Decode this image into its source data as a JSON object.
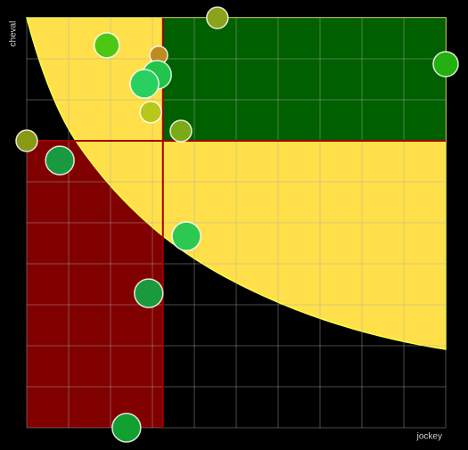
{
  "chart_data": {
    "type": "scatter",
    "x_label": "jockey",
    "y_label": "cheval",
    "xlim": [
      0,
      10
    ],
    "ylim": [
      0,
      10
    ],
    "xticks": [
      0,
      1,
      2,
      3,
      4,
      5,
      6,
      7,
      8,
      9,
      10
    ],
    "yticks": [
      0,
      1,
      2,
      3,
      4,
      5,
      6,
      7,
      8,
      9,
      10
    ],
    "grid": true,
    "reference_lines": {
      "x": 3.25,
      "y": 7
    },
    "x": [
      4.55,
      1.91,
      3.15,
      3.11,
      2.81,
      2.96,
      3.68,
      10,
      0,
      0.79,
      3.81,
      2.91,
      2.38
    ],
    "values": [
      10,
      9.33,
      9.09,
      8.61,
      8.39,
      7.7,
      7.24,
      8.87,
      7,
      6.52,
      4.67,
      3.28,
      0
    ],
    "sizes": [
      12,
      14,
      10,
      16,
      16,
      12,
      12,
      14,
      12,
      16,
      16,
      16,
      16
    ],
    "colors": [
      "#8aa31a",
      "#4cc814",
      "#c08a20",
      "#22c44a",
      "#28d060",
      "#b8c81a",
      "#7aaa18",
      "#22b010",
      "#889a14",
      "#1a9a40",
      "#2cc850",
      "#1a9a3a",
      "#10a030"
    ]
  }
}
